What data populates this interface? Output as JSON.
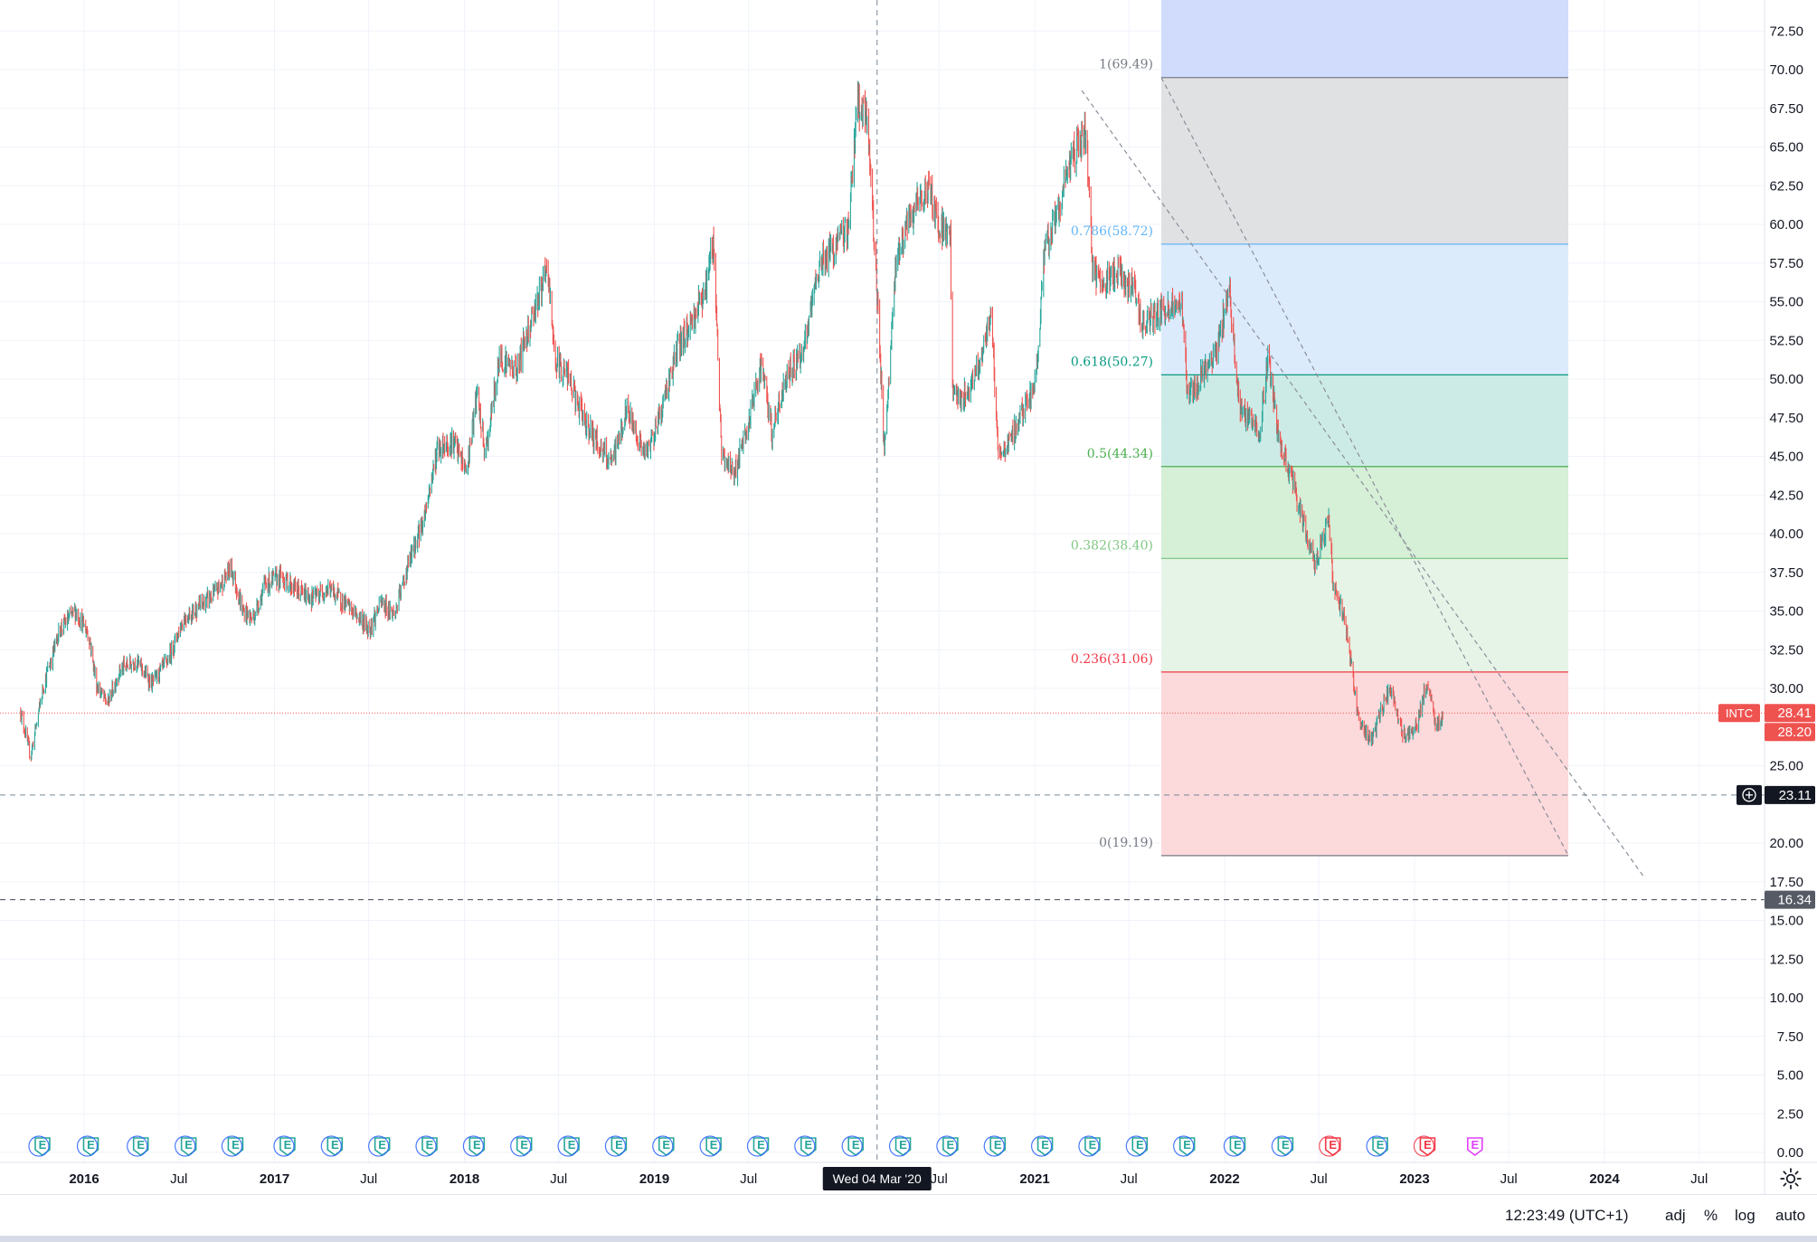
{
  "chart_data": {
    "type": "candlestick",
    "symbol": "INTC",
    "last_price": "28.41",
    "prev_close": "28.20",
    "crosshair_price": "23.11",
    "level_price": "16.34",
    "crosshair_date": "Wed 04 Mar '20",
    "y_ticks": [
      "72.50",
      "70.00",
      "67.50",
      "65.00",
      "62.50",
      "60.00",
      "57.50",
      "55.00",
      "52.50",
      "50.00",
      "47.50",
      "45.00",
      "42.50",
      "40.00",
      "37.50",
      "35.00",
      "32.50",
      "30.00",
      "25.00",
      "20.00",
      "17.50",
      "15.00",
      "12.50",
      "10.00",
      "7.50",
      "5.00",
      "2.50",
      "0.00"
    ],
    "ylim": [
      0,
      72.5
    ],
    "x_ticks": [
      {
        "label": "2016",
        "year": true
      },
      {
        "label": "Jul",
        "year": false
      },
      {
        "label": "2017",
        "year": true
      },
      {
        "label": "Jul",
        "year": false
      },
      {
        "label": "2018",
        "year": true
      },
      {
        "label": "Jul",
        "year": false
      },
      {
        "label": "2019",
        "year": true
      },
      {
        "label": "Jul",
        "year": false
      },
      {
        "label": "Jul",
        "year": false
      },
      {
        "label": "2021",
        "year": true
      },
      {
        "label": "Jul",
        "year": false
      },
      {
        "label": "2022",
        "year": true
      },
      {
        "label": "Jul",
        "year": false
      },
      {
        "label": "2023",
        "year": true
      },
      {
        "label": "Jul",
        "year": false
      },
      {
        "label": "2024",
        "year": true
      },
      {
        "label": "Jul",
        "year": false
      }
    ],
    "price_path": [
      [
        "2015-09-01",
        28.5
      ],
      [
        "2015-09-20",
        25.6
      ],
      [
        "2015-10-15",
        30.2
      ],
      [
        "2015-11-15",
        33.8
      ],
      [
        "2015-12-15",
        35.0
      ],
      [
        "2016-01-10",
        33.5
      ],
      [
        "2016-01-25",
        30.2
      ],
      [
        "2016-02-15",
        29.0
      ],
      [
        "2016-03-10",
        31.2
      ],
      [
        "2016-04-10",
        31.8
      ],
      [
        "2016-05-10",
        30.3
      ],
      [
        "2016-06-10",
        31.8
      ],
      [
        "2016-07-10",
        34.5
      ],
      [
        "2016-08-10",
        35.3
      ],
      [
        "2016-09-10",
        36.2
      ],
      [
        "2016-10-10",
        37.8
      ],
      [
        "2016-11-01",
        35.0
      ],
      [
        "2016-11-20",
        34.5
      ],
      [
        "2016-12-15",
        36.8
      ],
      [
        "2017-01-15",
        37.2
      ],
      [
        "2017-02-15",
        36.3
      ],
      [
        "2017-03-15",
        35.8
      ],
      [
        "2017-04-15",
        36.5
      ],
      [
        "2017-05-15",
        35.5
      ],
      [
        "2017-06-15",
        34.5
      ],
      [
        "2017-07-01",
        33.8
      ],
      [
        "2017-07-25",
        35.5
      ],
      [
        "2017-08-20",
        34.8
      ],
      [
        "2017-09-15",
        38.0
      ],
      [
        "2017-10-15",
        41.0
      ],
      [
        "2017-11-10",
        45.5
      ],
      [
        "2017-12-10",
        46.0
      ],
      [
        "2018-01-05",
        44.0
      ],
      [
        "2018-01-25",
        49.0
      ],
      [
        "2018-02-10",
        45.0
      ],
      [
        "2018-03-10",
        51.5
      ],
      [
        "2018-04-10",
        50.5
      ],
      [
        "2018-05-10",
        54.0
      ],
      [
        "2018-06-10",
        57.0
      ],
      [
        "2018-06-25",
        51.0
      ],
      [
        "2018-07-15",
        50.5
      ],
      [
        "2018-08-10",
        48.0
      ],
      [
        "2018-09-10",
        46.0
      ],
      [
        "2018-10-10",
        44.5
      ],
      [
        "2018-11-10",
        48.0
      ],
      [
        "2018-12-15",
        45.0
      ],
      [
        "2019-01-10",
        47.5
      ],
      [
        "2019-02-15",
        52.0
      ],
      [
        "2019-03-15",
        53.8
      ],
      [
        "2019-04-10",
        56.0
      ],
      [
        "2019-04-25",
        59.0
      ],
      [
        "2019-05-10",
        45.0
      ],
      [
        "2019-06-05",
        44.0
      ],
      [
        "2019-07-01",
        47.0
      ],
      [
        "2019-07-25",
        51.0
      ],
      [
        "2019-08-15",
        46.5
      ],
      [
        "2019-09-15",
        50.5
      ],
      [
        "2019-10-15",
        51.8
      ],
      [
        "2019-11-15",
        57.5
      ],
      [
        "2019-12-15",
        58.5
      ],
      [
        "2020-01-10",
        60.0
      ],
      [
        "2020-01-25",
        68.0
      ],
      [
        "2020-02-15",
        66.5
      ],
      [
        "2020-03-05",
        55.0
      ],
      [
        "2020-03-18",
        45.0
      ],
      [
        "2020-04-10",
        58.0
      ],
      [
        "2020-05-10",
        60.5
      ],
      [
        "2020-06-10",
        62.5
      ],
      [
        "2020-07-01",
        60.0
      ],
      [
        "2020-07-23",
        59.5
      ],
      [
        "2020-07-25",
        49.5
      ],
      [
        "2020-08-15",
        48.5
      ],
      [
        "2020-09-15",
        51.0
      ],
      [
        "2020-10-10",
        54.0
      ],
      [
        "2020-10-23",
        45.0
      ],
      [
        "2020-11-15",
        46.0
      ],
      [
        "2020-12-10",
        48.0
      ],
      [
        "2021-01-01",
        49.5
      ],
      [
        "2021-01-20",
        58.0
      ],
      [
        "2021-02-15",
        61.0
      ],
      [
        "2021-03-15",
        64.5
      ],
      [
        "2021-04-10",
        66.0
      ],
      [
        "2021-04-22",
        57.0
      ],
      [
        "2021-05-15",
        56.0
      ],
      [
        "2021-06-10",
        57.0
      ],
      [
        "2021-07-15",
        55.5
      ],
      [
        "2021-07-25",
        53.5
      ],
      [
        "2021-08-15",
        54.0
      ],
      [
        "2021-09-15",
        54.5
      ],
      [
        "2021-10-10",
        55.0
      ],
      [
        "2021-10-22",
        49.0
      ],
      [
        "2021-11-15",
        50.0
      ],
      [
        "2021-12-15",
        51.5
      ],
      [
        "2022-01-10",
        55.8
      ],
      [
        "2022-01-28",
        48.5
      ],
      [
        "2022-02-15",
        47.5
      ],
      [
        "2022-03-10",
        46.5
      ],
      [
        "2022-03-25",
        51.5
      ],
      [
        "2022-04-15",
        46.0
      ],
      [
        "2022-05-10",
        43.5
      ],
      [
        "2022-06-10",
        39.5
      ],
      [
        "2022-06-25",
        38.0
      ],
      [
        "2022-07-20",
        41.0
      ],
      [
        "2022-07-29",
        36.5
      ],
      [
        "2022-08-20",
        34.5
      ],
      [
        "2022-09-15",
        28.0
      ],
      [
        "2022-10-10",
        26.5
      ],
      [
        "2022-10-28",
        28.5
      ],
      [
        "2022-11-15",
        30.0
      ],
      [
        "2022-12-10",
        27.0
      ],
      [
        "2023-01-05",
        27.5
      ],
      [
        "2023-01-25",
        30.5
      ],
      [
        "2023-02-10",
        27.5
      ],
      [
        "2023-02-25",
        28.2
      ]
    ],
    "fib_levels": [
      {
        "label": "1(69.49)",
        "value": 69.49,
        "color": "#787b86",
        "fill": "#e0e1e3"
      },
      {
        "label": "0.786(58.72)",
        "value": 58.72,
        "color": "#64b5f6",
        "fill": "#dcebfb"
      },
      {
        "label": "0.618(50.27)",
        "value": 50.27,
        "color": "#089981",
        "fill": "#cdebe6"
      },
      {
        "label": "0.5(44.34)",
        "value": 44.34,
        "color": "#4caf50",
        "fill": "#d6efd7"
      },
      {
        "label": "0.382(38.40)",
        "value": 38.4,
        "color": "#81c784",
        "fill": "#e6f4e7"
      },
      {
        "label": "0.236(31.06)",
        "value": 31.06,
        "color": "#f23645",
        "fill": "#fcd9db"
      },
      {
        "label": "0(19.19)",
        "value": 19.19,
        "color": "#787b86",
        "fill": null
      }
    ],
    "earnings_markers": [
      "E",
      "E",
      "E",
      "E",
      "E",
      "E",
      "E",
      "E",
      "E",
      "E",
      "E",
      "E",
      "E",
      "E",
      "E",
      "E",
      "E",
      "E",
      "E",
      "E",
      "E",
      "E",
      "E",
      "E",
      "E",
      "E",
      "E",
      "E",
      "E",
      "E",
      "E"
    ],
    "colors": {
      "up": "#26a69a",
      "down": "#ef5350",
      "grid": "#f0f3fa",
      "axis_text": "#131722",
      "crosshair": "#758696"
    }
  },
  "status_bar": {
    "time": "12:23:49 (UTC+1)",
    "adj": "adj",
    "percent": "%",
    "log": "log",
    "auto": "auto"
  }
}
